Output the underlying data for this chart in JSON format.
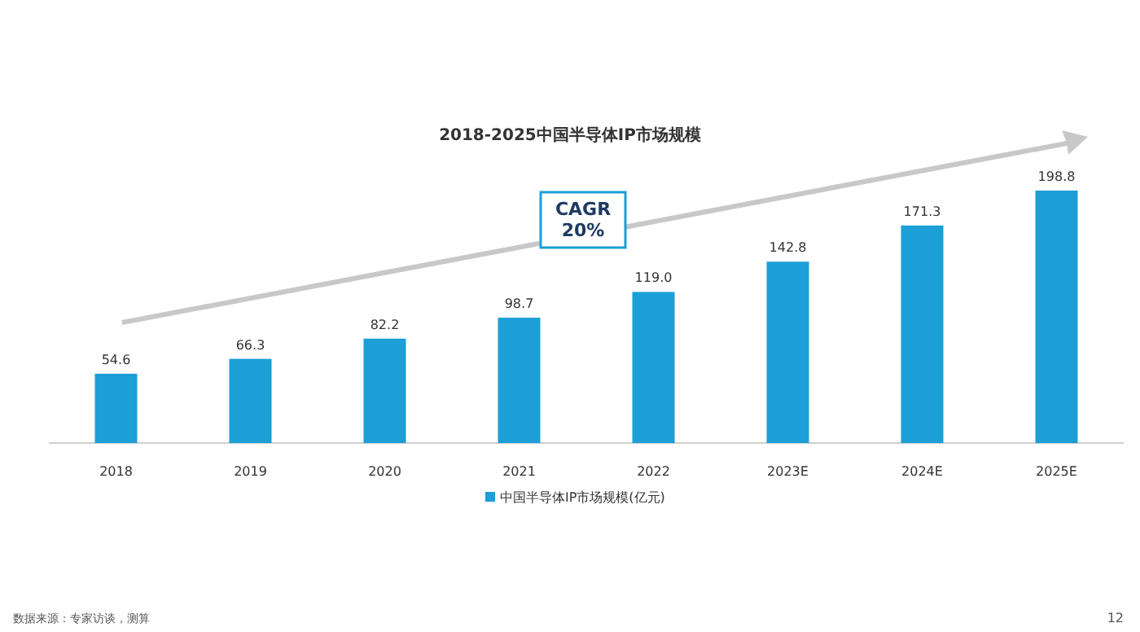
{
  "chart_data": {
    "type": "bar",
    "title": "2018-2025中国半导体IP市场规模",
    "categories": [
      "2018",
      "2019",
      "2020",
      "2021",
      "2022",
      "2023E",
      "2024E",
      "2025E"
    ],
    "series": [
      {
        "name": "中国半导体IP市场规模(亿元)",
        "color": "#1b9fd6",
        "values": [
          54.6,
          66.3,
          82.2,
          98.7,
          119.0,
          142.8,
          171.3,
          198.8
        ],
        "value_labels": [
          "54.6",
          "66.3",
          "82.2",
          "98.7",
          "119.0",
          "142.8",
          "171.3",
          "198.8"
        ]
      }
    ],
    "legend": "bottom",
    "annotations": [
      "CAGR\n20%",
      "数据来源：专家访谈，测算",
      "12"
    ]
  }
}
